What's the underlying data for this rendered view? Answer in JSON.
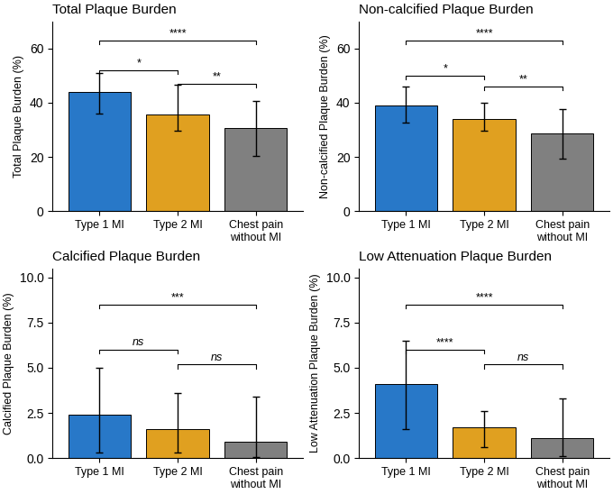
{
  "chart_data": [
    {
      "type": "bar",
      "title": "Total Plaque Burden",
      "ylabel": "Total Plaque Burden (%)",
      "categories": [
        "Type 1 MI",
        "Type 2 MI",
        "Chest pain without MI"
      ],
      "values": [
        44.0,
        35.5,
        30.5
      ],
      "error_plus": [
        7.0,
        11.0,
        10.0
      ],
      "error_minus": [
        8.0,
        6.0,
        10.0
      ],
      "colors": [
        "#2878C8",
        "#E0A020",
        "#808080"
      ],
      "ylim": [
        0,
        70
      ],
      "yticks": [
        0,
        20,
        40,
        60
      ],
      "significance": [
        {
          "from": "Type 1 MI",
          "to": "Type 2 MI",
          "y": 52,
          "label": "*"
        },
        {
          "from": "Type 1 MI",
          "to": "Chest pain without MI",
          "y": 63,
          "label": "****"
        },
        {
          "from": "Type 2 MI",
          "to": "Chest pain without MI",
          "y": 47,
          "label": "**"
        }
      ]
    },
    {
      "type": "bar",
      "title": "Non-calcified Plaque Burden",
      "ylabel": "Non-calcified Plaque Burden (%)",
      "categories": [
        "Type 1 MI",
        "Type 2 MI",
        "Chest pain without MI"
      ],
      "values": [
        39.0,
        34.0,
        28.5
      ],
      "error_plus": [
        7.0,
        6.0,
        9.0
      ],
      "error_minus": [
        6.5,
        4.5,
        9.0
      ],
      "colors": [
        "#2878C8",
        "#E0A020",
        "#808080"
      ],
      "ylim": [
        0,
        70
      ],
      "yticks": [
        0,
        20,
        40,
        60
      ],
      "significance": [
        {
          "from": "Type 1 MI",
          "to": "Type 2 MI",
          "y": 50,
          "label": "*"
        },
        {
          "from": "Type 1 MI",
          "to": "Chest pain without MI",
          "y": 63,
          "label": "****"
        },
        {
          "from": "Type 2 MI",
          "to": "Chest pain without MI",
          "y": 46,
          "label": "**"
        }
      ]
    },
    {
      "type": "bar",
      "title": "Calcified Plaque Burden",
      "ylabel": "Calcified Plaque Burden (%)",
      "categories": [
        "Type 1 MI",
        "Type 2 MI",
        "Chest pain without MI"
      ],
      "values": [
        2.4,
        1.6,
        0.9
      ],
      "error_plus": [
        2.6,
        2.0,
        2.5
      ],
      "error_minus": [
        2.1,
        1.3,
        0.85
      ],
      "colors": [
        "#2878C8",
        "#E0A020",
        "#808080"
      ],
      "ylim": [
        0,
        10.5
      ],
      "yticks": [
        {
          "value": 0,
          "label": "0.0"
        },
        {
          "value": 2.5,
          "label": "2.5"
        },
        {
          "value": 5,
          "label": "5.0"
        },
        {
          "value": 7.5,
          "label": "7.5"
        },
        {
          "value": 10,
          "label": "10.0"
        }
      ],
      "significance": [
        {
          "from": "Type 1 MI",
          "to": "Type 2 MI",
          "y": 6.0,
          "label": "ns"
        },
        {
          "from": "Type 1 MI",
          "to": "Chest pain without MI",
          "y": 8.5,
          "label": "***"
        },
        {
          "from": "Type 2 MI",
          "to": "Chest pain without MI",
          "y": 5.2,
          "label": "ns"
        }
      ]
    },
    {
      "type": "bar",
      "title": "Low Attenuation Plaque Burden",
      "ylabel": "Low Attenuation Plaque Burden (%)",
      "categories": [
        "Type 1 MI",
        "Type 2 MI",
        "Chest pain without MI"
      ],
      "values": [
        4.1,
        1.7,
        1.1
      ],
      "error_plus": [
        2.4,
        0.9,
        2.2
      ],
      "error_minus": [
        2.5,
        1.1,
        1.0
      ],
      "colors": [
        "#2878C8",
        "#E0A020",
        "#808080"
      ],
      "ylim": [
        0,
        10.5
      ],
      "yticks": [
        {
          "value": 0,
          "label": "0.0"
        },
        {
          "value": 2.5,
          "label": "2.5"
        },
        {
          "value": 5,
          "label": "5.0"
        },
        {
          "value": 7.5,
          "label": "7.5"
        },
        {
          "value": 10,
          "label": "10.0"
        }
      ],
      "significance": [
        {
          "from": "Type 1 MI",
          "to": "Type 2 MI",
          "y": 6.0,
          "label": "****"
        },
        {
          "from": "Type 1 MI",
          "to": "Chest pain without MI",
          "y": 8.5,
          "label": "****"
        },
        {
          "from": "Type 2 MI",
          "to": "Chest pain without MI",
          "y": 5.2,
          "label": "ns"
        }
      ]
    }
  ]
}
